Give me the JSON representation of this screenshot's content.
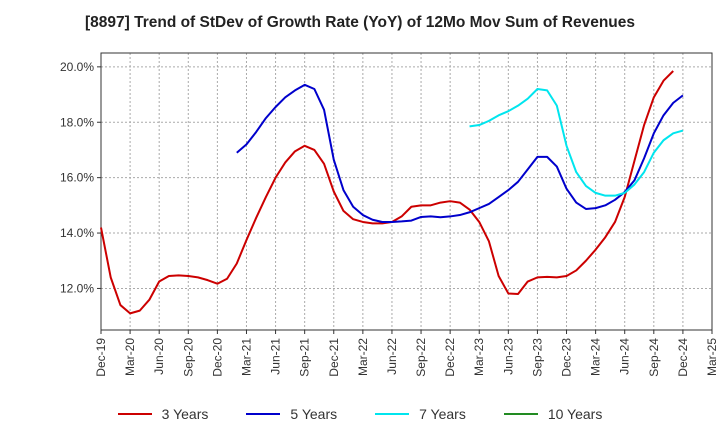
{
  "chart_data": {
    "type": "line",
    "title": "[8897]  Trend of StDev of Growth Rate (YoY) of 12Mo Mov Sum of Revenues",
    "xlabel": "",
    "ylabel": "",
    "ylim": [
      10.5,
      20.5
    ],
    "yticks": [
      12.0,
      14.0,
      16.0,
      18.0,
      20.0
    ],
    "ytick_labels": [
      "12.0%",
      "14.0%",
      "16.0%",
      "18.0%",
      "20.0%"
    ],
    "x_tick_labels": [
      "Dec-19",
      "Mar-20",
      "Jun-20",
      "Sep-20",
      "Dec-20",
      "Mar-21",
      "Jun-21",
      "Sep-21",
      "Dec-21",
      "Mar-22",
      "Jun-22",
      "Sep-22",
      "Dec-22",
      "Mar-23",
      "Jun-23",
      "Sep-23",
      "Dec-23",
      "Mar-24",
      "Jun-24",
      "Sep-24",
      "Dec-24",
      "Mar-25"
    ],
    "grid": true,
    "legend_position": "bottom",
    "series": [
      {
        "name": "3 Years",
        "color": "#cc0000",
        "start_index": 0,
        "values": [
          14.2,
          12.4,
          11.4,
          11.1,
          11.2,
          11.6,
          12.25,
          12.45,
          12.47,
          12.45,
          12.4,
          12.3,
          12.17,
          12.35,
          12.9,
          13.75,
          14.55,
          15.3,
          16.0,
          16.55,
          16.95,
          17.15,
          17.0,
          16.5,
          15.5,
          14.8,
          14.5,
          14.4,
          14.35,
          14.35,
          14.4,
          14.6,
          14.95,
          15.0,
          15.0,
          15.1,
          15.15,
          15.1,
          14.85,
          14.4,
          13.7,
          12.45,
          11.82,
          11.8,
          12.25,
          12.4,
          12.42,
          12.4,
          12.45,
          12.65,
          13.0,
          13.4,
          13.85,
          14.4,
          15.3,
          16.6,
          17.9,
          18.9,
          19.5,
          19.85
        ]
      },
      {
        "name": "5 Years",
        "color": "#0000cc",
        "start_index": 14,
        "values": [
          16.9,
          17.2,
          17.65,
          18.15,
          18.55,
          18.9,
          19.15,
          19.35,
          19.2,
          18.45,
          16.65,
          15.55,
          14.95,
          14.65,
          14.48,
          14.4,
          14.4,
          14.42,
          14.45,
          14.58,
          14.6,
          14.57,
          14.6,
          14.65,
          14.75,
          14.9,
          15.05,
          15.3,
          15.55,
          15.85,
          16.3,
          16.75,
          16.75,
          16.4,
          15.6,
          15.1,
          14.87,
          14.9,
          15.0,
          15.2,
          15.48,
          15.9,
          16.7,
          17.6,
          18.25,
          18.7,
          18.97
        ]
      },
      {
        "name": "7 Years",
        "color": "#00e5ee",
        "start_index": 38,
        "values": [
          17.85,
          17.9,
          18.05,
          18.25,
          18.4,
          18.6,
          18.85,
          19.2,
          19.15,
          18.6,
          17.15,
          16.2,
          15.7,
          15.45,
          15.35,
          15.35,
          15.45,
          15.75,
          16.2,
          16.9,
          17.35,
          17.6,
          17.7
        ]
      },
      {
        "name": "10 Years",
        "color": "#228b22",
        "start_index": 0,
        "values": []
      }
    ]
  }
}
